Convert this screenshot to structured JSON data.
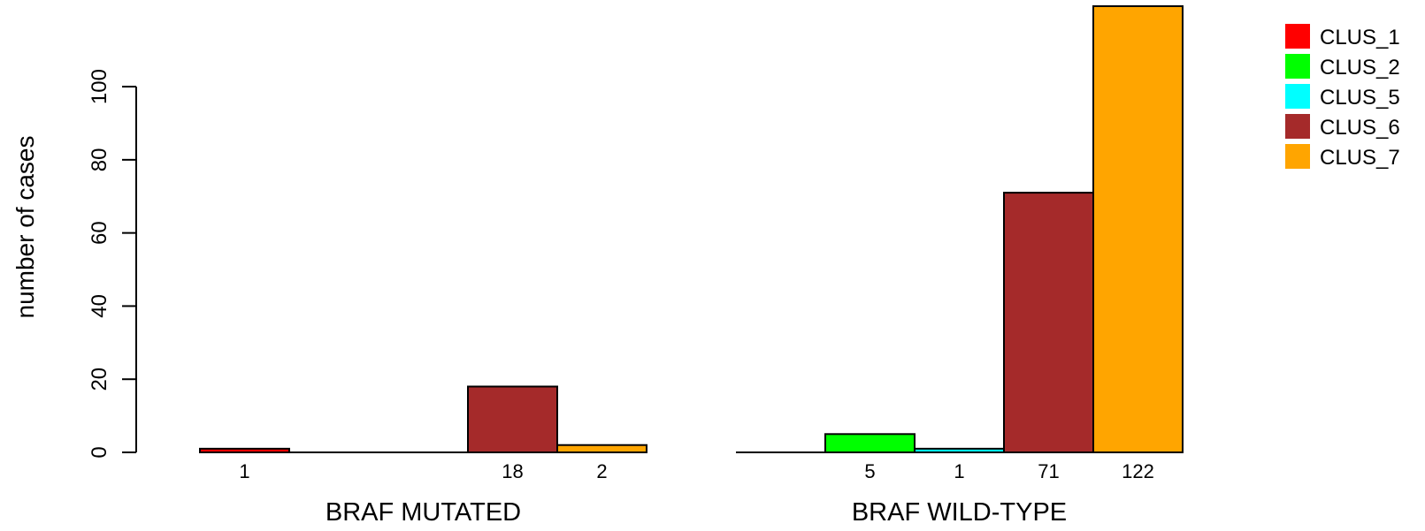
{
  "chart_data": {
    "type": "bar",
    "layout": "grouped",
    "ylabel": "number of cases",
    "ylim": [
      0,
      122
    ],
    "yticks": [
      0,
      20,
      40,
      60,
      80,
      100
    ],
    "groups": [
      "BRAF MUTATED",
      "BRAF WILD-TYPE"
    ],
    "series": [
      {
        "name": "CLUS_1",
        "color": "#FF0000",
        "values": [
          1,
          0
        ]
      },
      {
        "name": "CLUS_2",
        "color": "#00FF00",
        "values": [
          0,
          5
        ]
      },
      {
        "name": "CLUS_5",
        "color": "#00FFFF",
        "values": [
          0,
          1
        ]
      },
      {
        "name": "CLUS_6",
        "color": "#A52A2A",
        "values": [
          18,
          71
        ]
      },
      {
        "name": "CLUS_7",
        "color": "#FFA500",
        "values": [
          2,
          122
        ]
      }
    ],
    "bar_labels": [
      [
        "1",
        "",
        "",
        "18",
        "2"
      ],
      [
        "",
        "5",
        "1",
        "71",
        "122"
      ]
    ],
    "legend": {
      "position": "top-right"
    },
    "grid": false
  }
}
